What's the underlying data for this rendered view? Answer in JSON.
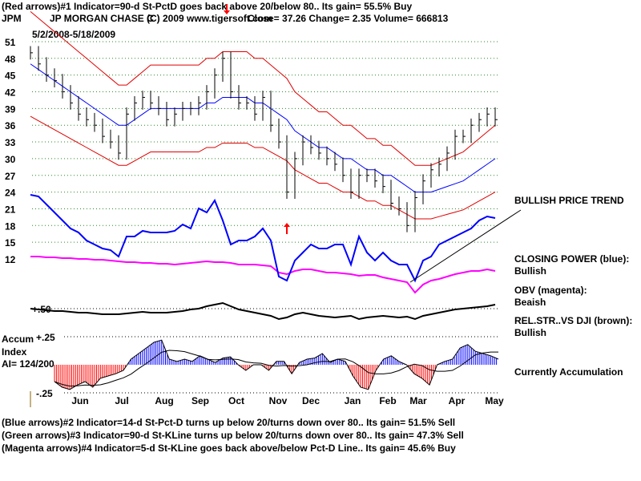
{
  "header": {
    "line1": "(Red arrows)#1 Indicator=90-d St-PctD goes back above 20/below 80.. Its gain= 55.5% Buy",
    "symbol": "JPM",
    "company": "JP MORGAN CHASE C",
    "copyright": "(C) 2009 www.tigersoft.com",
    "quote": "Close=  37.26  Change= 2.35 Volume= 666813",
    "date_range": "5/2/2008-5/18/2009"
  },
  "footer": {
    "line2": "(Blue arrows)#2 Indicator=14-d St-Pct-D turns up below 20/turns down over 80.. Its gain= 51.5% Sell",
    "line3": "(Green arrows)#3 Indicator=90-d St-KLine turns up below 20/turns down over 80.. Its gain= 47.3% Sell",
    "line4": "(Magenta arrows)#4 Indicator=5-d St-KLine goes back above/below Pct-D Line.. Its gain= 45.6% Buy"
  },
  "annotations": {
    "trend": "BULLISH PRICE TREND",
    "cp_title": "CLOSING POWER (blue):",
    "cp_value": "Bullish",
    "obv_title": "OBV (magenta):",
    "obv_value": "Beaish",
    "rs_title": "REL.STR..VS DJI (brown):",
    "rs_value": "Bullish",
    "accum_status": "Currently Accumulation",
    "accum_title1": "Accum",
    "accum_title2": "Index",
    "accum_ai": "AI= 124/200",
    "accum_top": "+.25",
    "accum_bottom": "-.25",
    "rs_ref": "+.50"
  },
  "colors": {
    "price": "#000000",
    "ma": "#0000ff",
    "bands": "#e00000",
    "closing_power": "#0000ff",
    "obv": "#ff00ff",
    "relstr": "#000000",
    "accum_pos": "#0000ff",
    "accum_neg": "#ff0000",
    "arrow": "#ff0000"
  },
  "chart_data": {
    "type": "line",
    "title": "JPM JP MORGAN CHASE C",
    "x_unit": "week index",
    "months": [
      "Jun",
      "Jul",
      "Aug",
      "Sep",
      "Oct",
      "Nov",
      "Dec",
      "Jan",
      "Feb",
      "Mar",
      "Apr",
      "May"
    ],
    "y_ticks": [
      "51",
      "48",
      "45",
      "42",
      "39",
      "36",
      "33",
      "30",
      "27",
      "24",
      "21",
      "18",
      "15",
      "12"
    ],
    "ylim": [
      12,
      51
    ],
    "band_pct": 20,
    "price": [
      49,
      47,
      45,
      44,
      42,
      40,
      38,
      37,
      36,
      34,
      33,
      31,
      38,
      40,
      41,
      40,
      39,
      37,
      38,
      39,
      39,
      40,
      42,
      45,
      48,
      42,
      40,
      40,
      38,
      41,
      36,
      33,
      24,
      30,
      33,
      32,
      31,
      30,
      29,
      27,
      24,
      27,
      27,
      26,
      25,
      22,
      21,
      18,
      23,
      26,
      28,
      29,
      31,
      34,
      34,
      36,
      37,
      38,
      37
    ],
    "ma": [
      47,
      46,
      45,
      44,
      43,
      42,
      41,
      40,
      39,
      38,
      37,
      36,
      36,
      37,
      38,
      39,
      39,
      39,
      39,
      39,
      39,
      39,
      40,
      40,
      41,
      41,
      41,
      41,
      40,
      40,
      39,
      38,
      37,
      35,
      34,
      33,
      32,
      32,
      31,
      30,
      30,
      29,
      28,
      28,
      27,
      27,
      26,
      25,
      24,
      24,
      24,
      24.5,
      25,
      25.5,
      26,
      27,
      28,
      29,
      30
    ],
    "closing_power": [
      117,
      115,
      105,
      95,
      85,
      75,
      70,
      60,
      55,
      50,
      48,
      40,
      65,
      65,
      72,
      70,
      70,
      70,
      72,
      80,
      75,
      100,
      95,
      110,
      85,
      55,
      60,
      60,
      65,
      75,
      60,
      15,
      10,
      35,
      45,
      55,
      50,
      50,
      55,
      55,
      30,
      65,
      45,
      35,
      45,
      35,
      30,
      30,
      10,
      35,
      40,
      55,
      60,
      65,
      70,
      75,
      85,
      90,
      88
    ],
    "obv": [
      40,
      40,
      39,
      39,
      38,
      38,
      37,
      37,
      36,
      36,
      35,
      34,
      33,
      33,
      32,
      32,
      31,
      31,
      30,
      31,
      32,
      33,
      34,
      33,
      33,
      32,
      30,
      30,
      30,
      29,
      28,
      20,
      18,
      22,
      24,
      24,
      22,
      20,
      20,
      19,
      18,
      16,
      17,
      17,
      14,
      12,
      10,
      8,
      -5,
      5,
      10,
      12,
      15,
      18,
      20,
      22,
      22,
      24,
      22
    ],
    "relstr": [
      15,
      14,
      13,
      12,
      12,
      11,
      10,
      10,
      9,
      8,
      8,
      8,
      9,
      10,
      11,
      10,
      10,
      10,
      11,
      12,
      14,
      15,
      18,
      20,
      22,
      18,
      14,
      12,
      10,
      8,
      6,
      2,
      4,
      8,
      10,
      8,
      6,
      5,
      4,
      5,
      6,
      2,
      4,
      5,
      6,
      5,
      4,
      5,
      2,
      6,
      8,
      10,
      12,
      14,
      15,
      16,
      17,
      18,
      20
    ],
    "accum": [
      -0.15,
      -0.2,
      -0.22,
      -0.18,
      -0.15,
      -0.2,
      -0.12,
      -0.1,
      -0.08,
      -0.05,
      0.05,
      0.1,
      0.15,
      0.2,
      0.22,
      0.05,
      0.03,
      0.05,
      0.03,
      0.08,
      0.05,
      0.02,
      0.06,
      0.07,
      0,
      -0.05,
      0,
      0,
      -0.05,
      0.03,
      0.03,
      -0.08,
      0.02,
      0.05,
      0.06,
      0.1,
      0.02,
      0.05,
      0.03,
      -0.1,
      -0.2,
      -0.22,
      -0.05,
      0.05,
      0.08,
      0.03,
      0,
      -0.08,
      -0.12,
      -0.18,
      0,
      0.03,
      0.05,
      0.15,
      0.18,
      0.12,
      0.1,
      0.08,
      0.05
    ],
    "accum_ylim": [
      -0.25,
      0.25
    ]
  }
}
